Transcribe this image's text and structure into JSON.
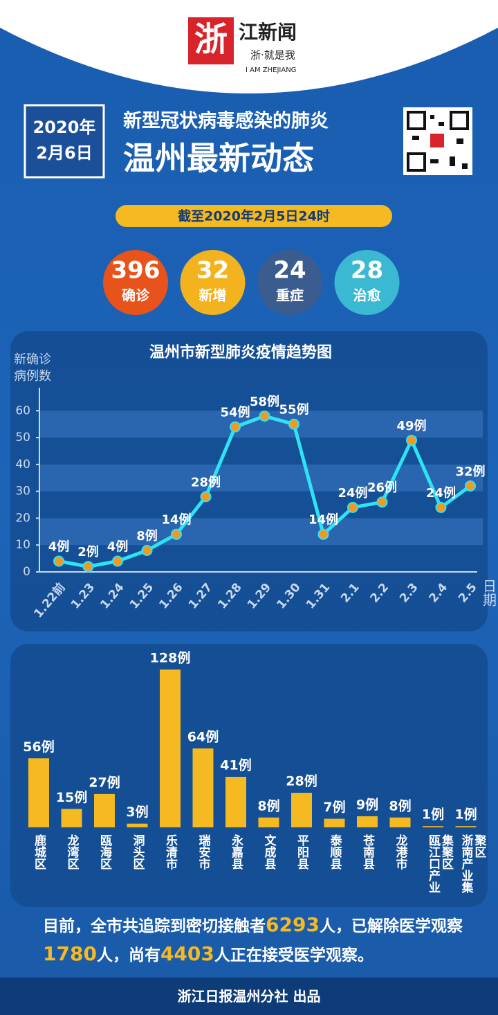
{
  "header": {
    "logo_stamp": "浙",
    "logo_name": "江新闻",
    "logo_slogan": "浙·就是我",
    "logo_en": "I AM ZHEJIANG",
    "date": [
      "2020年",
      "2月6日"
    ],
    "title": "新型冠状病毒感染的肺炎",
    "headline": "温州最新动态",
    "as_of": "截至2020年2月5日24时"
  },
  "stats": [
    {
      "value": 396,
      "label": "确诊"
    },
    {
      "value": 32,
      "label": "新增"
    },
    {
      "value": 24,
      "label": "重症"
    },
    {
      "value": 28,
      "label": "治愈"
    }
  ],
  "chart_data": [
    {
      "type": "line",
      "title": "温州市新型肺炎疫情趋势图",
      "y_label": [
        "新确诊",
        "病例数"
      ],
      "x_label": "日期",
      "categories": [
        "1.22前",
        "1.23",
        "1.24",
        "1.25",
        "1.26",
        "1.27",
        "1.28",
        "1.29",
        "1.30",
        "1.31",
        "2.1",
        "2.2",
        "2.3",
        "2.4",
        "2.5"
      ],
      "values": [
        4,
        2,
        4,
        8,
        14,
        28,
        54,
        58,
        55,
        14,
        24,
        26,
        49,
        24,
        32
      ],
      "value_labels": [
        "4例",
        "2例",
        "4例",
        "8例",
        "14例",
        "28例",
        "54例",
        "58例",
        "55例",
        "14例",
        "24例",
        "26例",
        "49例",
        "24例",
        "32例"
      ],
      "color": "#2fe3f5",
      "marker_color": "#f39a1e",
      "ylim": [
        0,
        66
      ],
      "yticks": [
        0,
        10,
        20,
        30,
        40,
        50,
        60
      ],
      "grid": "bands"
    },
    {
      "type": "bar",
      "categories": [
        "鹿城区",
        "龙湾区",
        "瓯海区",
        "洞头区",
        "乐清市",
        "瑞安市",
        "永嘉县",
        "文成县",
        "平阳县",
        "泰顺县",
        "苍南县",
        "龙港市",
        "瓯江口产业集聚区",
        "浙南产业集聚区"
      ],
      "values": [
        56,
        15,
        27,
        3,
        128,
        64,
        41,
        8,
        28,
        7,
        9,
        8,
        1,
        1
      ],
      "value_labels": [
        "56例",
        "15例",
        "27例",
        "3例",
        "128例",
        "64例",
        "41例",
        "8例",
        "28例",
        "7例",
        "9例",
        "8例",
        "1例",
        "1例"
      ],
      "color": "#f5b921"
    }
  ],
  "footer": {
    "note": [
      "目前，全市共追踪到密切接触者",
      6293,
      "人，已解除医学观察",
      1780,
      "人，尚有",
      4403,
      "人正在接受医学观察。"
    ],
    "credit": "浙江日报温州分社 出品"
  }
}
